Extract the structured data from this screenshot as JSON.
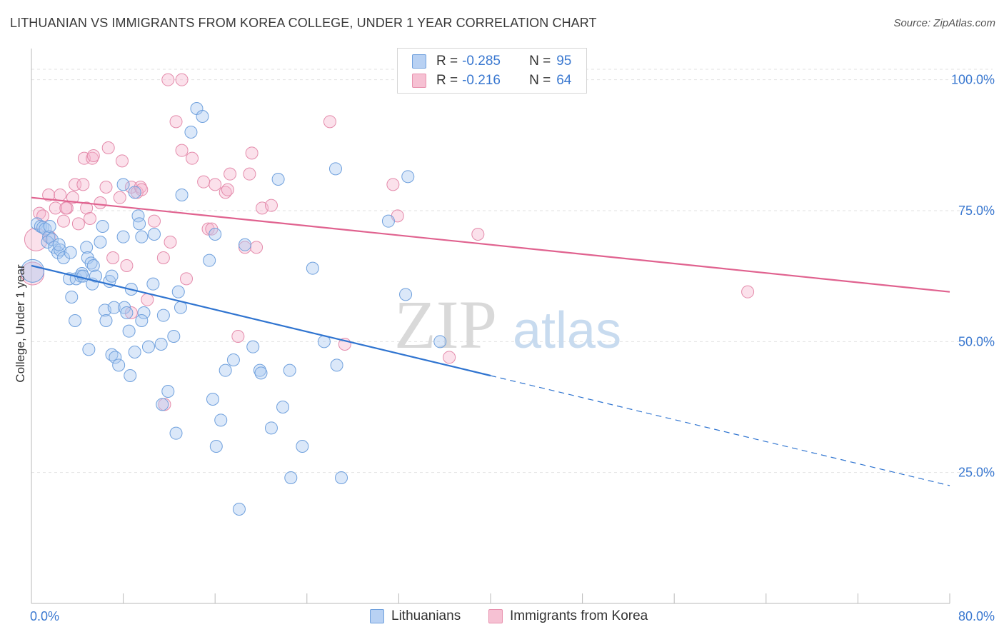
{
  "title": "LITHUANIAN VS IMMIGRANTS FROM KOREA COLLEGE, UNDER 1 YEAR CORRELATION CHART",
  "source": "Source: ZipAtlas.com",
  "watermark": {
    "zip": "ZIP",
    "atlas": "atlas"
  },
  "legend": {
    "r_label": "R =",
    "n_label": "N =",
    "rows": [
      {
        "r": "-0.285",
        "n": "95",
        "fill": "#b8d1f3",
        "stroke": "#6fa0dd"
      },
      {
        "r": "-0.216",
        "n": "64",
        "fill": "#f6c1d3",
        "stroke": "#e891ae"
      }
    ]
  },
  "bottom_legend": [
    {
      "label": "Lithuanians",
      "fill": "#b8d1f3",
      "stroke": "#6fa0dd"
    },
    {
      "label": "Immigrants from Korea",
      "fill": "#f6c1d3",
      "stroke": "#e891ae"
    }
  ],
  "chart_data": {
    "type": "scatter",
    "title": "LITHUANIAN VS IMMIGRANTS FROM KOREA COLLEGE, UNDER 1 YEAR CORRELATION CHART",
    "xlabel": "",
    "ylabel": "College, Under 1 year",
    "xlim": [
      0,
      80
    ],
    "ylim": [
      0,
      105
    ],
    "x_tick_labels": [
      "0.0%",
      "80.0%"
    ],
    "y_ticks": [
      25,
      50,
      75,
      100
    ],
    "y_tick_labels": [
      "25.0%",
      "50.0%",
      "75.0%",
      "100.0%"
    ],
    "grid": true,
    "legend_position": "top-center",
    "colors": {
      "Lithuanians": "#3a78d0",
      "Immigrants from Korea": "#e0628f"
    },
    "series": [
      {
        "name": "Lithuanians",
        "r": -0.285,
        "n": 95,
        "trend": {
          "x0": 0,
          "y0": 64.5,
          "x1": 40,
          "y1": 43.5,
          "dash_to_x": 80,
          "dash_to_y": 22.5
        },
        "points": [
          [
            0.1,
            63.5
          ],
          [
            0.5,
            72.5
          ],
          [
            0.8,
            72.0
          ],
          [
            1.0,
            71.8
          ],
          [
            1.2,
            71.5
          ],
          [
            1.5,
            70.0
          ],
          [
            1.4,
            69.0
          ],
          [
            1.8,
            69.5
          ],
          [
            2.0,
            68.0
          ],
          [
            2.3,
            67.0
          ],
          [
            2.5,
            67.5
          ],
          [
            2.8,
            66.0
          ],
          [
            3.4,
            67.0
          ],
          [
            1.6,
            72.0
          ],
          [
            3.3,
            62.0
          ],
          [
            3.5,
            58.5
          ],
          [
            3.8,
            54.0
          ],
          [
            3.9,
            62.0
          ],
          [
            4.3,
            62.5
          ],
          [
            4.4,
            63.0
          ],
          [
            4.5,
            62.5
          ],
          [
            4.8,
            68.0
          ],
          [
            4.9,
            66.0
          ],
          [
            5.2,
            65.0
          ],
          [
            5.3,
            61.0
          ],
          [
            5.4,
            64.5
          ],
          [
            5.6,
            62.5
          ],
          [
            6.0,
            69.0
          ],
          [
            6.2,
            72.0
          ],
          [
            6.4,
            56.0
          ],
          [
            6.8,
            61.5
          ],
          [
            7.0,
            62.5
          ],
          [
            7.2,
            56.5
          ],
          [
            6.5,
            54.0
          ],
          [
            5.0,
            48.5
          ],
          [
            7.0,
            47.5
          ],
          [
            7.3,
            47.0
          ],
          [
            7.6,
            45.5
          ],
          [
            8.1,
            56.5
          ],
          [
            8.3,
            55.5
          ],
          [
            8.5,
            52.0
          ],
          [
            8.7,
            60.0
          ],
          [
            8.6,
            43.5
          ],
          [
            8.0,
            70.0
          ],
          [
            8.0,
            80.0
          ],
          [
            9.0,
            78.5
          ],
          [
            9.3,
            74.0
          ],
          [
            9.4,
            72.5
          ],
          [
            9.6,
            70.0
          ],
          [
            9.8,
            55.5
          ],
          [
            9.6,
            54.0
          ],
          [
            10.2,
            49.0
          ],
          [
            10.7,
            70.5
          ],
          [
            11.3,
            49.5
          ],
          [
            11.5,
            55.0
          ],
          [
            10.6,
            61.0
          ],
          [
            12.4,
            51.0
          ],
          [
            12.8,
            59.5
          ],
          [
            13.0,
            56.5
          ],
          [
            11.9,
            40.5
          ],
          [
            11.4,
            38.0
          ],
          [
            12.6,
            32.5
          ],
          [
            13.1,
            78.0
          ],
          [
            13.9,
            90.0
          ],
          [
            14.4,
            94.5
          ],
          [
            14.9,
            93.0
          ],
          [
            15.5,
            65.5
          ],
          [
            16.0,
            70.5
          ],
          [
            15.8,
            39.0
          ],
          [
            16.5,
            35.0
          ],
          [
            16.1,
            30.0
          ],
          [
            16.9,
            44.5
          ],
          [
            17.6,
            46.5
          ],
          [
            18.1,
            18.0
          ],
          [
            18.6,
            68.5
          ],
          [
            19.3,
            49.0
          ],
          [
            19.9,
            44.5
          ],
          [
            20.0,
            44.0
          ],
          [
            20.9,
            33.5
          ],
          [
            21.5,
            81.0
          ],
          [
            21.9,
            37.5
          ],
          [
            22.5,
            44.5
          ],
          [
            22.6,
            24.0
          ],
          [
            23.6,
            30.0
          ],
          [
            24.5,
            64.0
          ],
          [
            25.5,
            50.0
          ],
          [
            26.6,
            45.5
          ],
          [
            26.5,
            83.0
          ],
          [
            27.0,
            24.0
          ],
          [
            31.1,
            73.0
          ],
          [
            32.6,
            59.0
          ],
          [
            32.8,
            81.5
          ],
          [
            35.6,
            50.0
          ],
          [
            2.4,
            68.5
          ],
          [
            9.0,
            48.0
          ]
        ]
      },
      {
        "name": "Immigrants from Korea",
        "r": -0.216,
        "n": 64,
        "trend": {
          "x0": 0,
          "y0": 77.5,
          "x1": 80,
          "y1": 59.5
        },
        "points": [
          [
            0.1,
            63.0
          ],
          [
            0.4,
            69.5
          ],
          [
            0.7,
            74.5
          ],
          [
            1.0,
            74.0
          ],
          [
            1.5,
            78.0
          ],
          [
            1.6,
            70.0
          ],
          [
            2.1,
            75.5
          ],
          [
            2.5,
            78.0
          ],
          [
            2.8,
            73.0
          ],
          [
            3.1,
            75.5
          ],
          [
            3.6,
            77.5
          ],
          [
            3.8,
            80.0
          ],
          [
            4.1,
            72.5
          ],
          [
            4.5,
            80.0
          ],
          [
            4.6,
            85.0
          ],
          [
            4.8,
            75.5
          ],
          [
            5.1,
            73.5
          ],
          [
            5.3,
            85.0
          ],
          [
            5.4,
            85.5
          ],
          [
            6.0,
            76.5
          ],
          [
            6.5,
            79.5
          ],
          [
            6.7,
            87.0
          ],
          [
            7.1,
            66.0
          ],
          [
            7.7,
            77.5
          ],
          [
            7.9,
            84.5
          ],
          [
            8.3,
            64.5
          ],
          [
            8.7,
            79.5
          ],
          [
            9.2,
            78.5
          ],
          [
            9.5,
            79.5
          ],
          [
            9.6,
            79.0
          ],
          [
            10.1,
            58.0
          ],
          [
            10.7,
            73.0
          ],
          [
            11.5,
            66.0
          ],
          [
            11.6,
            38.0
          ],
          [
            12.1,
            69.0
          ],
          [
            11.9,
            100.0
          ],
          [
            13.1,
            100.0
          ],
          [
            12.6,
            92.0
          ],
          [
            13.5,
            62.0
          ],
          [
            13.1,
            86.5
          ],
          [
            14.0,
            85.0
          ],
          [
            15.0,
            80.5
          ],
          [
            15.4,
            71.5
          ],
          [
            15.7,
            71.5
          ],
          [
            16.0,
            80.0
          ],
          [
            16.9,
            78.5
          ],
          [
            17.1,
            79.0
          ],
          [
            17.3,
            82.0
          ],
          [
            18.0,
            51.0
          ],
          [
            18.6,
            68.0
          ],
          [
            19.0,
            82.0
          ],
          [
            19.2,
            86.0
          ],
          [
            19.6,
            68.0
          ],
          [
            20.1,
            75.5
          ],
          [
            20.9,
            76.0
          ],
          [
            26.0,
            92.0
          ],
          [
            27.3,
            49.5
          ],
          [
            31.5,
            80.0
          ],
          [
            31.9,
            74.0
          ],
          [
            36.4,
            47.0
          ],
          [
            38.9,
            70.5
          ],
          [
            62.4,
            59.5
          ],
          [
            8.7,
            55.5
          ],
          [
            3.0,
            75.5
          ]
        ]
      }
    ]
  }
}
